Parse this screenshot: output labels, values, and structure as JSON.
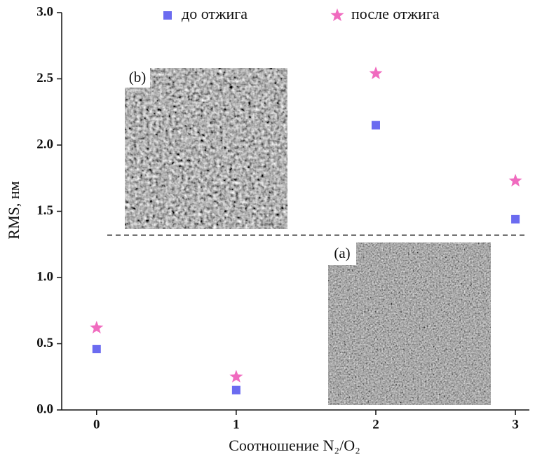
{
  "chart_data": {
    "type": "scatter",
    "xlabel": "Соотношение N₂/O₂",
    "ylabel": "RMS, нм",
    "x": [
      0,
      1,
      2,
      3
    ],
    "series": [
      {
        "name": "до отжига",
        "color": "#6b6bf0",
        "marker": "square",
        "values": [
          0.46,
          0.15,
          2.15,
          1.44
        ]
      },
      {
        "name": "после отжига",
        "color": "#f06bbf",
        "marker": "star",
        "values": [
          0.62,
          0.25,
          2.54,
          1.73
        ]
      }
    ],
    "xlim": [
      -0.25,
      3.1
    ],
    "ylim": [
      0,
      3
    ],
    "xticks": [
      0,
      1,
      2,
      3
    ],
    "yticks": [
      {
        "value": 0,
        "label": "0.0"
      },
      0.5,
      {
        "value": 1,
        "label": "1.0"
      },
      1.5,
      {
        "value": 2,
        "label": "2.0"
      },
      2.5,
      {
        "value": 3,
        "label": "3.0"
      }
    ],
    "hline": 1.32,
    "legend": "top",
    "insets": [
      {
        "label": "(b)"
      },
      {
        "label": "(a)"
      }
    ]
  }
}
